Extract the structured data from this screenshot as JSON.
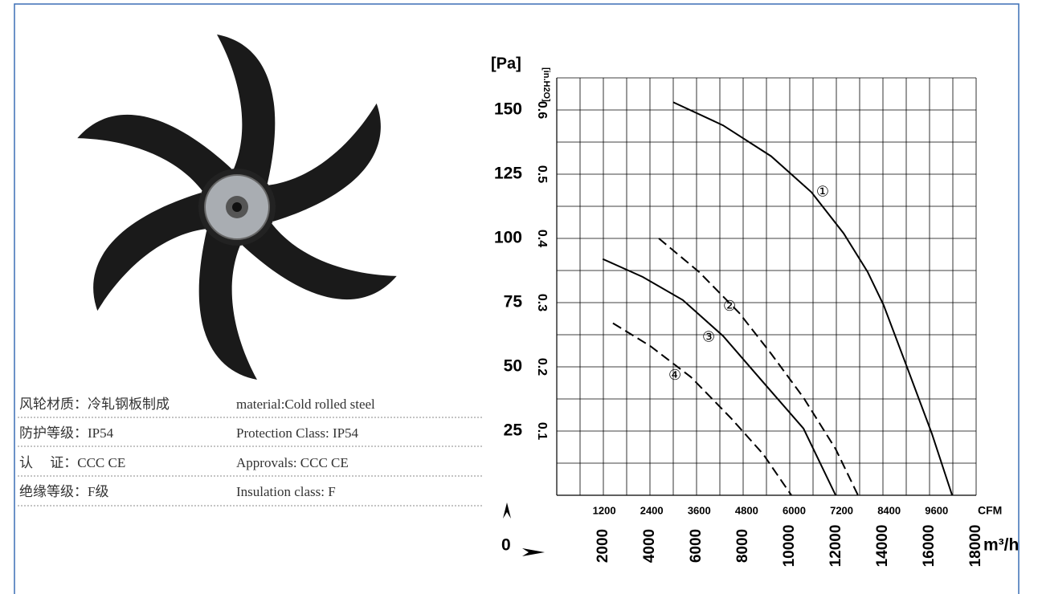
{
  "spec_table": {
    "rows": [
      [
        "风轮材质：冷轧钢板制成",
        "material:Cold rolled steel"
      ],
      [
        "防护等级：IP54",
        "Protection Class: IP54"
      ],
      [
        "认　 证：CCC CE",
        "Approvals: CCC  CE"
      ],
      [
        "绝缘等级：F级",
        "Insulation class: F"
      ]
    ]
  },
  "chart_data": {
    "type": "line",
    "ylabel": "[Pa]",
    "y2label": "[in.H2O]",
    "xlabel": "m³/h",
    "x2label": "CFM",
    "origin_label": "0",
    "xlim": [
      0,
      18000
    ],
    "xticks": [
      2000,
      4000,
      6000,
      8000,
      10000,
      12000,
      14000,
      16000,
      18000
    ],
    "xgrid": [
      1000,
      2000,
      3000,
      4000,
      5000,
      6000,
      7000,
      8000,
      9000,
      10000,
      11000,
      12000,
      13000,
      14000,
      15000,
      16000,
      17000,
      18000
    ],
    "x2lim": [
      0,
      10600
    ],
    "x2ticks": [
      1200,
      2400,
      3600,
      4800,
      6000,
      7200,
      8400,
      9600
    ],
    "ylim": [
      0,
      162.5
    ],
    "yticks": [
      25,
      50,
      75,
      100,
      125,
      150
    ],
    "ygrid": [
      12.5,
      25,
      37.5,
      50,
      62.5,
      75,
      87.5,
      100,
      112.5,
      125,
      137.5,
      150,
      162.5
    ],
    "y2lim": [
      0,
      0.65
    ],
    "y2ticks": [
      0.1,
      0.2,
      0.3,
      0.4,
      0.5,
      0.6
    ],
    "grid": true,
    "series": [
      {
        "name": "①",
        "color": "#000000",
        "dashed": false,
        "x": [
          5000,
          7140,
          9200,
          10930,
          12310,
          13340,
          14030,
          15070,
          16100,
          16970
        ],
        "values": [
          153,
          144,
          132,
          118,
          102,
          87,
          74,
          49,
          24,
          0
        ]
      },
      {
        "name": "②",
        "color": "#000000",
        "dashed": true,
        "x": [
          4380,
          6100,
          7830,
          9210,
          10590,
          11970,
          12930
        ],
        "values": [
          100,
          87,
          71,
          55,
          38,
          18,
          0
        ]
      },
      {
        "name": "③",
        "color": "#000000",
        "dashed": false,
        "x": [
          1970,
          3690,
          5410,
          7140,
          8860,
          10590,
          11970
        ],
        "values": [
          92,
          85,
          76,
          62,
          44,
          26,
          0
        ]
      },
      {
        "name": "④",
        "color": "#000000",
        "dashed": true,
        "x": [
          2410,
          4030,
          5760,
          7480,
          8860,
          10070
        ],
        "values": [
          67,
          58,
          46,
          30,
          16,
          0
        ]
      }
    ]
  }
}
